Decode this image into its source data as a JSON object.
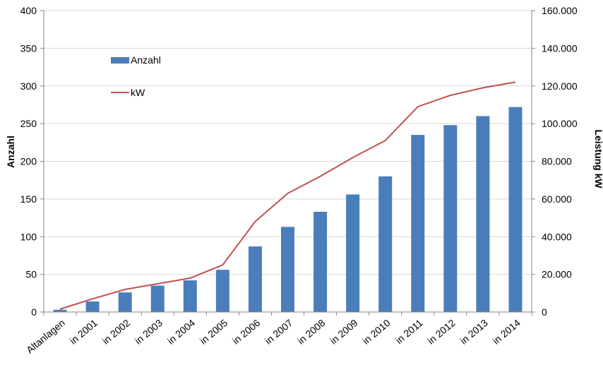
{
  "chart_data": {
    "type": "bar",
    "categories": [
      "Altanlagen",
      "in 2001",
      "in 2002",
      "in 2003",
      "in 2004",
      "in 2005",
      "in 2006",
      "in 2007",
      "in 2008",
      "in 2009",
      "in 2010",
      "in 2011",
      "in 2012",
      "in 2013",
      "in 2014"
    ],
    "series": [
      {
        "name": "Anzahl",
        "type": "bar",
        "axis": "left",
        "color": "#4a7ebb",
        "values": [
          3,
          14,
          26,
          35,
          42,
          56,
          87,
          113,
          133,
          156,
          180,
          235,
          248,
          260,
          272
        ]
      },
      {
        "name": "kW",
        "type": "line",
        "axis": "right",
        "color": "#c0504d",
        "values": [
          1500,
          7000,
          12000,
          15000,
          18000,
          25000,
          48000,
          63000,
          72000,
          82000,
          91000,
          109000,
          115000,
          119000,
          122000
        ]
      }
    ],
    "ylabel": "Anzahl",
    "y2label": "Leistung kW",
    "ylim": [
      0,
      400
    ],
    "y2lim": [
      0,
      160000
    ],
    "yticks": [
      "0",
      "50",
      "100",
      "150",
      "200",
      "250",
      "300",
      "350",
      "400"
    ],
    "y2ticks": [
      "0",
      "20.000",
      "40.000",
      "60.000",
      "80.000",
      "100.000",
      "120.000",
      "140.000",
      "160.000"
    ],
    "grid": true,
    "legend_position": "upper-left inside"
  }
}
